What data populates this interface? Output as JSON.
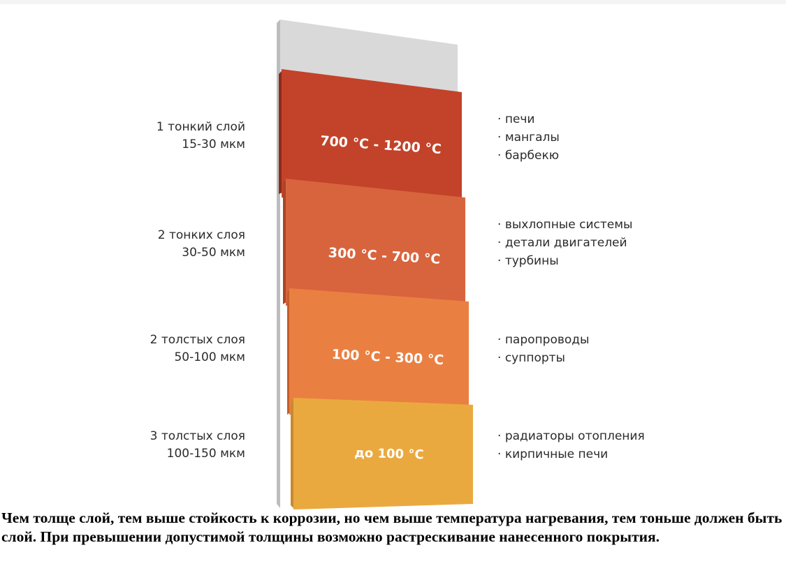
{
  "colors": {
    "base_gray": "#d9d9d9",
    "band_1": "#c2432a",
    "band_2": "#d8643d",
    "band_3": "#ea7f42",
    "band_4": "#eaa93f"
  },
  "layers": [
    {
      "thickness_line1": "1 тонкий слой",
      "thickness_line2": "15-30 мкм",
      "temperature": "700 °C - 1200 °C",
      "uses": [
        "печи",
        "мангалы",
        "барбекю"
      ]
    },
    {
      "thickness_line1": "2 тонких слоя",
      "thickness_line2": "30-50 мкм",
      "temperature": "300 °C - 700 °C",
      "uses": [
        "выхлопные системы",
        "детали двигателей",
        "турбины"
      ]
    },
    {
      "thickness_line1": "2 толстых слоя",
      "thickness_line2": "50-100 мкм",
      "temperature": "100 °C - 300 °C",
      "uses": [
        "паропроводы",
        "суппорты"
      ]
    },
    {
      "thickness_line1": "3 толстых слоя",
      "thickness_line2": "100-150 мкм",
      "temperature": "до 100 °C",
      "uses": [
        "радиаторы отопления",
        "кирпичные печи"
      ]
    }
  ],
  "caption": "Чем толще слой, тем выше стойкость к коррозии, но чем выше температура нагревания, тем тоньше должен быть слой. При превышении допустимой толщины возможно растрескивание нанесенного покрытия."
}
